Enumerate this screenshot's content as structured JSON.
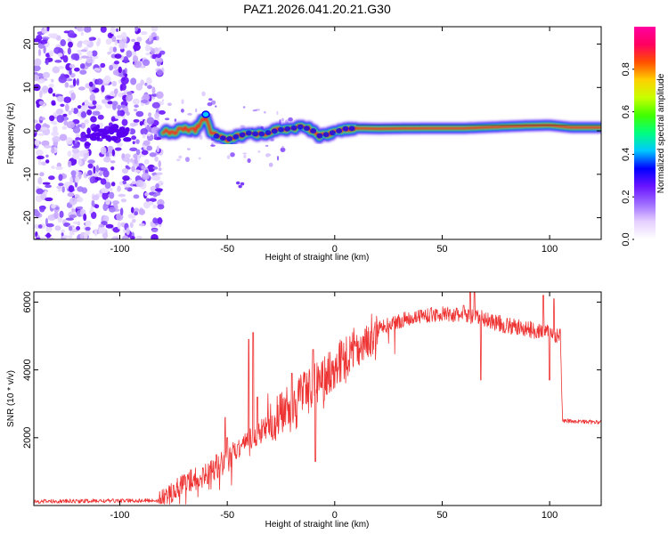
{
  "chart_data": [
    {
      "type": "heatmap",
      "title": "PAZ1.2026.041.20.21.G30",
      "xlabel": "Height of straight line (km)",
      "ylabel": "Frequency (Hz)",
      "xlim": [
        -140,
        124
      ],
      "ylim": [
        -25,
        24
      ],
      "xticks": [
        -100,
        -50,
        0,
        50,
        100
      ],
      "yticks": [
        -20,
        -10,
        0,
        10,
        20
      ],
      "noise_region_x": [
        -140,
        -80
      ],
      "centerline": [
        [
          -80,
          0.0
        ],
        [
          -75,
          -0.3
        ],
        [
          -70,
          0.5
        ],
        [
          -65,
          0.0
        ],
        [
          -60,
          3.5
        ],
        [
          -58,
          0.0
        ],
        [
          -55,
          -1.2
        ],
        [
          -50,
          -2.0
        ],
        [
          -45,
          -1.2
        ],
        [
          -40,
          -0.5
        ],
        [
          -35,
          -0.8
        ],
        [
          -30,
          -0.3
        ],
        [
          -25,
          0.3
        ],
        [
          -20,
          0.6
        ],
        [
          -15,
          1.0
        ],
        [
          -10,
          0.0
        ],
        [
          -8,
          -1.2
        ],
        [
          -5,
          -1.0
        ],
        [
          0,
          -0.3
        ],
        [
          5,
          0.5
        ],
        [
          10,
          0.6
        ],
        [
          20,
          0.5
        ],
        [
          40,
          0.6
        ],
        [
          60,
          0.6
        ],
        [
          80,
          1.0
        ],
        [
          90,
          1.2
        ],
        [
          100,
          1.3
        ],
        [
          110,
          0.8
        ],
        [
          124,
          0.8
        ]
      ],
      "colorbar": {
        "label": "Normalized spectral amplitude",
        "range": [
          0,
          1
        ],
        "ticks": [
          "0.0",
          "0.2",
          "0.4",
          "0.6",
          "0.8"
        ],
        "colors": [
          "#ffffff",
          "#e6d0ff",
          "#9e6bff",
          "#6a14ff",
          "#0000ff",
          "#00c8ff",
          "#00ff80",
          "#40ff00",
          "#c8ff00",
          "#ffd000",
          "#ff5000",
          "#ff0060",
          "#ff00a0"
        ]
      }
    },
    {
      "type": "line",
      "xlabel": "Height of straight line (km)",
      "ylabel": "SNR (10 * v/v)",
      "xlim": [
        -140,
        124
      ],
      "ylim": [
        0,
        6300
      ],
      "xticks": [
        -100,
        -50,
        0,
        50,
        100
      ],
      "yticks": [
        2000,
        4000,
        6000
      ],
      "series": [
        {
          "name": "SNR",
          "color": "#ee3333",
          "envelope": [
            [
              -140,
              120
            ],
            [
              -80,
              150
            ],
            [
              -75,
              350
            ],
            [
              -70,
              650
            ],
            [
              -60,
              900
            ],
            [
              -55,
              1100
            ],
            [
              -50,
              1400
            ],
            [
              -40,
              1900
            ],
            [
              -30,
              2400
            ],
            [
              -20,
              3000
            ],
            [
              -10,
              3550
            ],
            [
              0,
              4100
            ],
            [
              10,
              4700
            ],
            [
              20,
              5200
            ],
            [
              30,
              5450
            ],
            [
              40,
              5600
            ],
            [
              50,
              5650
            ],
            [
              60,
              5600
            ],
            [
              70,
              5500
            ],
            [
              80,
              5300
            ],
            [
              90,
              5200
            ],
            [
              100,
              5100
            ],
            [
              105,
              5000
            ],
            [
              106,
              2500
            ],
            [
              124,
              2450
            ]
          ],
          "spikes": [
            [
              -75,
              600
            ],
            [
              -70,
              900
            ],
            [
              -55,
              1500
            ],
            [
              -51,
              2600
            ],
            [
              -50,
              2000
            ],
            [
              -45,
              1800
            ],
            [
              -40,
              4900
            ],
            [
              -38,
              5100
            ],
            [
              -36,
              3200
            ],
            [
              -31,
              3300
            ],
            [
              -20,
              3900
            ],
            [
              -10,
              4600
            ],
            [
              -9,
              1300
            ],
            [
              -5,
              3100
            ],
            [
              10,
              4700
            ],
            [
              60,
              5900
            ],
            [
              63,
              6300
            ],
            [
              65,
              6300
            ],
            [
              68,
              3700
            ],
            [
              97,
              6200
            ],
            [
              100,
              3700
            ],
            [
              102,
              6100
            ]
          ]
        }
      ]
    }
  ]
}
